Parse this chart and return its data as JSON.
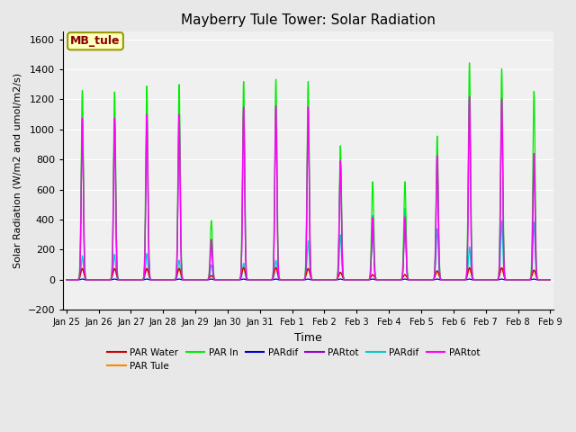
{
  "title": "Mayberry Tule Tower: Solar Radiation",
  "xlabel": "Time",
  "ylabel": "Solar Radiation (W/m2 and umol/m2/s)",
  "ylim": [
    -200,
    1650
  ],
  "background_color": "#e8e8e8",
  "plot_bg_color": "#f0f0f0",
  "grid_color": "#ffffff",
  "annotation_text": "MB_tule",
  "annotation_box_color": "#ffffc0",
  "annotation_box_edge": "#999900",
  "legend_entries": [
    "PAR Water",
    "PAR Tule",
    "PAR In",
    "PARdif",
    "PARtot",
    "PARdif",
    "PARtot"
  ],
  "legend_colors": [
    "#cc0000",
    "#ff8800",
    "#00ee00",
    "#0000cc",
    "#9900cc",
    "#00cccc",
    "#ff00ff"
  ],
  "xtick_labels": [
    "Jan 25",
    "Jan 26",
    "Jan 27",
    "Jan 28",
    "Jan 29",
    "Jan 30",
    "Jan 31",
    "Feb 1",
    "Feb 2",
    "Feb 3",
    "Feb 4",
    "Feb 5",
    "Feb 6",
    "Feb 7",
    "Feb 8",
    "Feb 9"
  ],
  "days": [
    {
      "name": "Jan25",
      "peak_green": 1265,
      "peak_magenta": 1080,
      "peak_purple": 1060,
      "peak_red": 75,
      "peak_orange": 70,
      "peak_cyan": 160,
      "peak_blue": 5
    },
    {
      "name": "Jan26",
      "peak_green": 1255,
      "peak_magenta": 1080,
      "peak_purple": 1060,
      "peak_red": 75,
      "peak_orange": 70,
      "peak_cyan": 170,
      "peak_blue": 5
    },
    {
      "name": "Jan27",
      "peak_green": 1295,
      "peak_magenta": 1105,
      "peak_purple": 1085,
      "peak_red": 75,
      "peak_orange": 68,
      "peak_cyan": 175,
      "peak_blue": 5
    },
    {
      "name": "Jan28",
      "peak_green": 1305,
      "peak_magenta": 1105,
      "peak_purple": 1085,
      "peak_red": 75,
      "peak_orange": 68,
      "peak_cyan": 130,
      "peak_blue": 5
    },
    {
      "name": "Jan29",
      "peak_green": 395,
      "peak_magenta": 270,
      "peak_purple": 255,
      "peak_red": 28,
      "peak_orange": 25,
      "peak_cyan": 100,
      "peak_blue": 5
    },
    {
      "name": "Jan30",
      "peak_green": 1325,
      "peak_magenta": 1155,
      "peak_purple": 1135,
      "peak_red": 80,
      "peak_orange": 75,
      "peak_cyan": 110,
      "peak_blue": 5
    },
    {
      "name": "Jan31",
      "peak_green": 1340,
      "peak_magenta": 1165,
      "peak_purple": 1145,
      "peak_red": 80,
      "peak_orange": 78,
      "peak_cyan": 130,
      "peak_blue": 5
    },
    {
      "name": "Feb1",
      "peak_green": 1325,
      "peak_magenta": 1155,
      "peak_purple": 1135,
      "peak_red": 75,
      "peak_orange": 68,
      "peak_cyan": 260,
      "peak_blue": 5
    },
    {
      "name": "Feb2",
      "peak_green": 895,
      "peak_magenta": 795,
      "peak_purple": 775,
      "peak_red": 50,
      "peak_orange": 45,
      "peak_cyan": 300,
      "peak_blue": 5
    },
    {
      "name": "Feb3",
      "peak_green": 655,
      "peak_magenta": 415,
      "peak_purple": 395,
      "peak_red": 35,
      "peak_orange": 30,
      "peak_cyan": 430,
      "peak_blue": 5
    },
    {
      "name": "Feb4",
      "peak_green": 655,
      "peak_magenta": 420,
      "peak_purple": 400,
      "peak_red": 35,
      "peak_orange": 30,
      "peak_cyan": 480,
      "peak_blue": 5
    },
    {
      "name": "Feb5",
      "peak_green": 960,
      "peak_magenta": 830,
      "peak_purple": 810,
      "peak_red": 60,
      "peak_orange": 55,
      "peak_cyan": 340,
      "peak_blue": 5
    },
    {
      "name": "Feb6",
      "peak_green": 1450,
      "peak_magenta": 1225,
      "peak_purple": 1200,
      "peak_red": 80,
      "peak_orange": 72,
      "peak_cyan": 220,
      "peak_blue": 5
    },
    {
      "name": "Feb7",
      "peak_green": 1410,
      "peak_magenta": 1210,
      "peak_purple": 1190,
      "peak_red": 80,
      "peak_orange": 75,
      "peak_cyan": 395,
      "peak_blue": 5
    },
    {
      "name": "Feb8",
      "peak_green": 1260,
      "peak_magenta": 845,
      "peak_purple": 825,
      "peak_red": 65,
      "peak_orange": 60,
      "peak_cyan": 385,
      "peak_blue": 5
    }
  ]
}
